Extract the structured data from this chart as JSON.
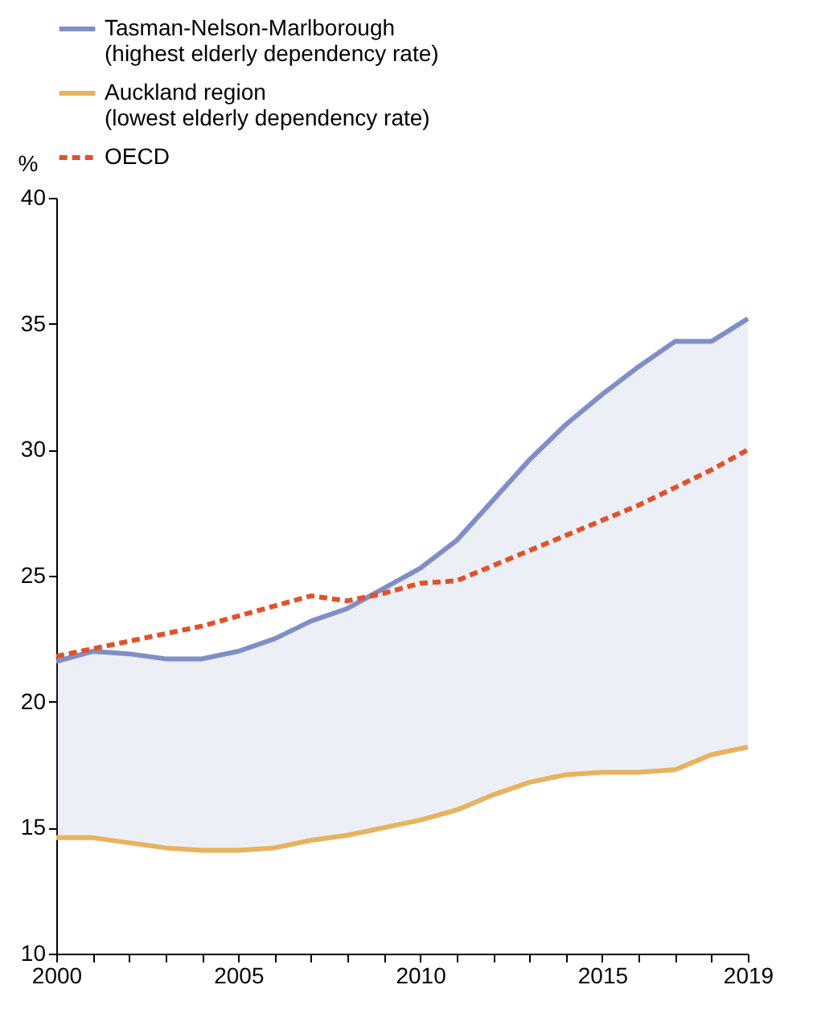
{
  "chart_data": {
    "type": "line",
    "ylabel": "%",
    "x": [
      2000,
      2001,
      2002,
      2003,
      2004,
      2005,
      2006,
      2007,
      2008,
      2009,
      2010,
      2011,
      2012,
      2013,
      2014,
      2015,
      2016,
      2017,
      2018,
      2019
    ],
    "series": [
      {
        "name": "Tasman-Nelson-Marlborough (highest elderly dependency rate)",
        "color": "#7f8fc6",
        "line_style": "solid",
        "values": [
          21.6,
          22.0,
          21.9,
          21.7,
          21.7,
          22.0,
          22.5,
          23.2,
          23.7,
          24.5,
          25.3,
          26.4,
          28.0,
          29.6,
          31.0,
          32.2,
          33.3,
          34.3,
          34.3,
          35.2
        ],
        "lower": [
          14.6,
          14.6,
          14.4,
          14.2,
          14.1,
          14.1,
          14.2,
          14.5,
          14.7,
          15.0,
          15.3,
          15.7,
          16.3,
          16.8,
          17.1,
          17.2,
          17.2,
          17.3,
          17.9,
          18.2
        ],
        "upper": [
          21.6,
          22.0,
          21.9,
          21.7,
          21.7,
          22.0,
          22.5,
          23.2,
          23.7,
          24.5,
          25.3,
          26.4,
          28.0,
          29.6,
          31.0,
          32.2,
          33.3,
          34.3,
          34.3,
          35.2
        ]
      },
      {
        "name": "Auckland region (lowest elderly dependency rate)",
        "color": "#e8b25e",
        "line_style": "solid",
        "values": [
          14.6,
          14.6,
          14.4,
          14.2,
          14.1,
          14.1,
          14.2,
          14.5,
          14.7,
          15.0,
          15.3,
          15.7,
          16.3,
          16.8,
          17.1,
          17.2,
          17.2,
          17.3,
          17.9,
          18.2
        ]
      },
      {
        "name": "OECD",
        "color": "#e0522b",
        "line_style": "dashed",
        "values": [
          21.8,
          22.1,
          22.4,
          22.7,
          23.0,
          23.4,
          23.8,
          24.2,
          24.0,
          24.3,
          24.7,
          24.8,
          25.4,
          26.0,
          26.6,
          27.2,
          27.8,
          28.5,
          29.2,
          30.0
        ]
      }
    ],
    "xlim": [
      2000,
      2019
    ],
    "xticks": [
      2000,
      {
        "value": 2001,
        "label": null
      },
      {
        "value": 2002,
        "label": null
      },
      {
        "value": 2003,
        "label": null
      },
      {
        "value": 2004,
        "label": null
      },
      2005,
      {
        "value": 2006,
        "label": null
      },
      {
        "value": 2007,
        "label": null
      },
      {
        "value": 2008,
        "label": null
      },
      {
        "value": 2009,
        "label": null
      },
      2010,
      {
        "value": 2011,
        "label": null
      },
      {
        "value": 2012,
        "label": null
      },
      {
        "value": 2013,
        "label": null
      },
      {
        "value": 2014,
        "label": null
      },
      2015,
      {
        "value": 2016,
        "label": null
      },
      {
        "value": 2017,
        "label": null
      },
      {
        "value": 2018,
        "label": null
      },
      2019
    ],
    "ylim": [
      10,
      40
    ],
    "yticks": [
      10,
      15,
      20,
      25,
      30,
      35,
      40
    ],
    "grid": false,
    "legend": "top"
  }
}
